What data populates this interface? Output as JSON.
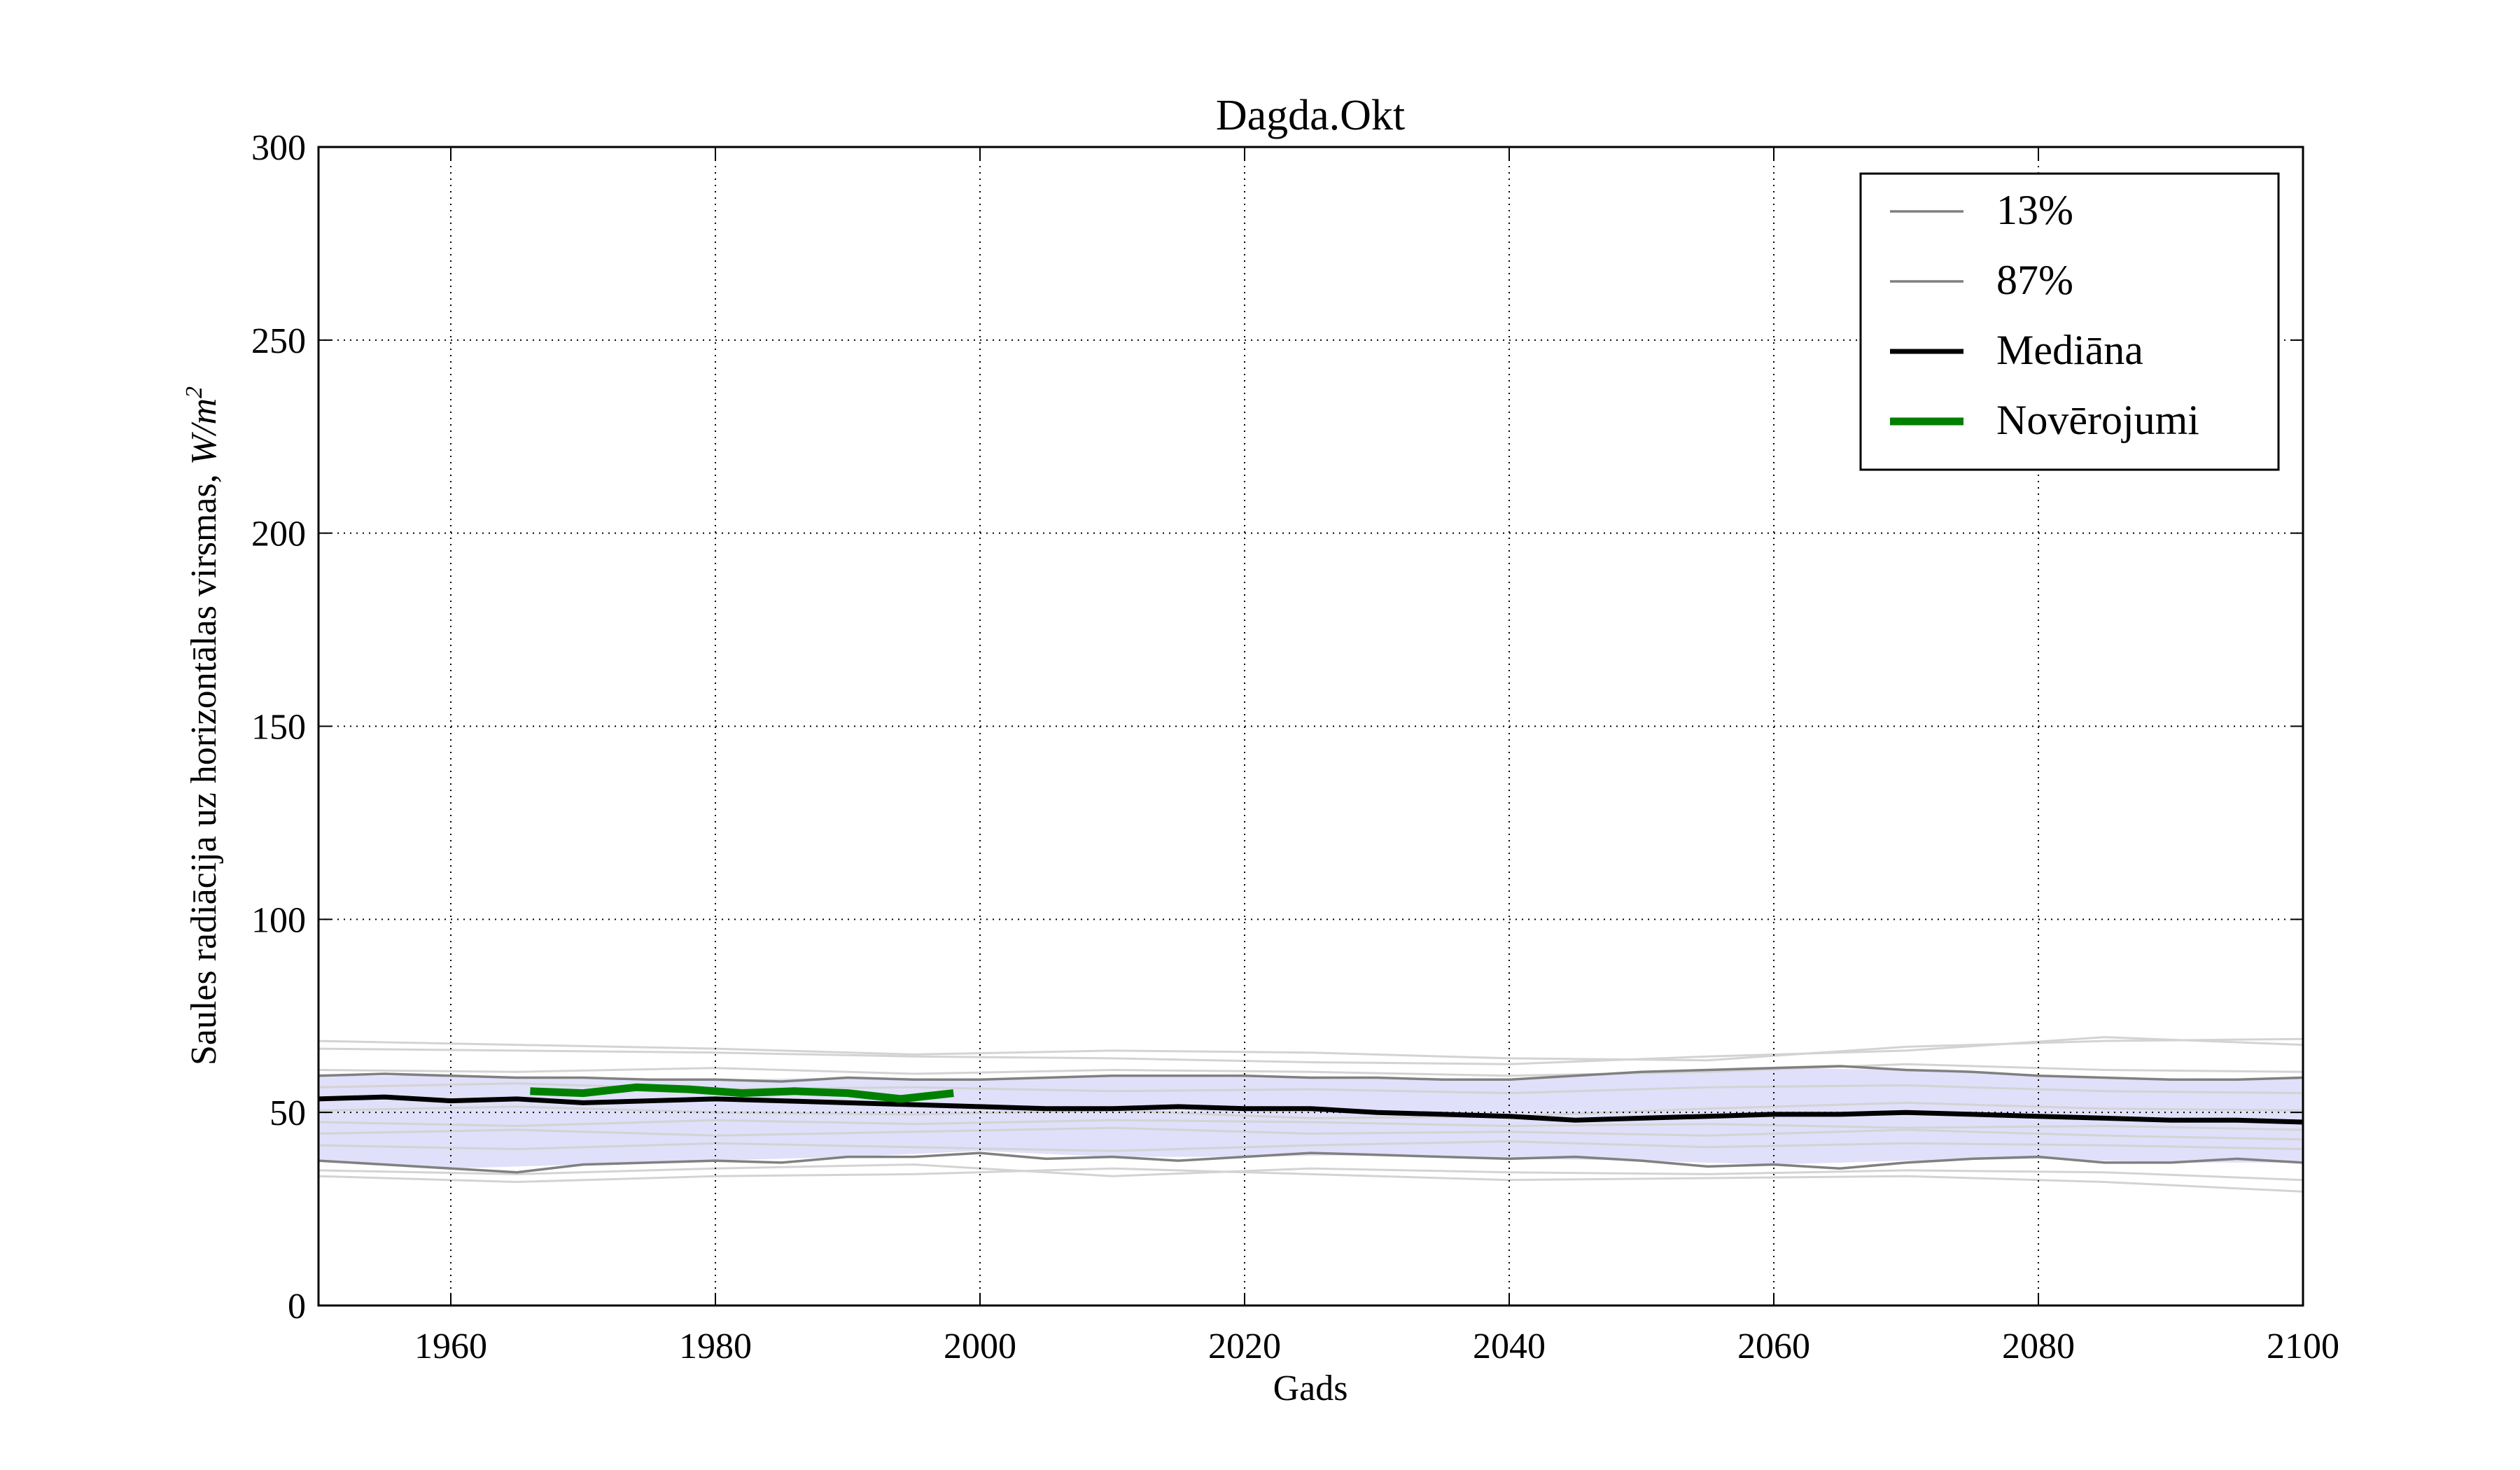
{
  "chart_data": {
    "type": "line",
    "title": "Dagda.Okt",
    "xlabel": "Gads",
    "ylabel": "Saules radiācija uz horizontālas virsmas, ",
    "ylabel_unit": "W/m",
    "ylabel_unit_exp": "2",
    "xlim": [
      1950,
      2100
    ],
    "ylim": [
      0,
      300
    ],
    "xticks": [
      1960,
      1980,
      2000,
      2020,
      2040,
      2060,
      2080,
      2100
    ],
    "yticks": [
      0,
      50,
      100,
      150,
      200,
      250,
      300
    ],
    "grid": true,
    "legend_position": "top-right",
    "legend": [
      {
        "label": "13%",
        "color": "#808080"
      },
      {
        "label": "87%",
        "color": "#808080"
      },
      {
        "label": "Mediāna",
        "color": "#000000"
      },
      {
        "label": "Novērojumi",
        "color": "#008000"
      }
    ],
    "band_color": "#e0e0fa",
    "ensemble_color": "#d3d3d3",
    "band": {
      "x": [
        1950,
        1960,
        1970,
        1980,
        1990,
        2000,
        2010,
        2020,
        2030,
        2040,
        2050,
        2060,
        2070,
        2080,
        2090,
        2100
      ],
      "lower": [
        37.5,
        35.5,
        36.5,
        37.5,
        38.5,
        40.0,
        38.5,
        38.5,
        39.0,
        38.0,
        37.5,
        36.5,
        37.5,
        38.0,
        37.0,
        37.0
      ],
      "upper": [
        59.5,
        59.5,
        59.0,
        58.5,
        59.0,
        58.5,
        59.5,
        59.5,
        59.0,
        58.5,
        60.5,
        61.5,
        61.0,
        59.5,
        58.5,
        59.0
      ]
    },
    "series": [
      {
        "name": "13%",
        "color": "#808080",
        "x": [
          1950,
          1955,
          1960,
          1965,
          1970,
          1975,
          1980,
          1985,
          1990,
          1995,
          2000,
          2005,
          2010,
          2015,
          2020,
          2025,
          2030,
          2035,
          2040,
          2045,
          2050,
          2055,
          2060,
          2065,
          2070,
          2075,
          2080,
          2085,
          2090,
          2095,
          2100
        ],
        "y": [
          37.5,
          36.5,
          35.5,
          34.5,
          36.5,
          37.0,
          37.5,
          37.0,
          38.5,
          38.5,
          39.5,
          38.0,
          38.5,
          37.5,
          38.5,
          39.5,
          39.0,
          38.5,
          38.0,
          38.5,
          37.5,
          36.0,
          36.5,
          35.5,
          37.0,
          38.0,
          38.5,
          37.0,
          37.0,
          38.0,
          37.0
        ]
      },
      {
        "name": "87%",
        "color": "#808080",
        "x": [
          1950,
          1955,
          1960,
          1965,
          1970,
          1975,
          1980,
          1985,
          1990,
          1995,
          2000,
          2005,
          2010,
          2015,
          2020,
          2025,
          2030,
          2035,
          2040,
          2045,
          2050,
          2055,
          2060,
          2065,
          2070,
          2075,
          2080,
          2085,
          2090,
          2095,
          2100
        ],
        "y": [
          59.5,
          60.0,
          59.5,
          59.0,
          59.0,
          58.5,
          58.5,
          58.0,
          59.0,
          58.5,
          58.5,
          59.0,
          59.5,
          59.5,
          59.5,
          59.0,
          59.0,
          58.5,
          58.5,
          59.5,
          60.5,
          61.0,
          61.5,
          62.0,
          61.0,
          60.5,
          59.5,
          59.0,
          58.5,
          58.5,
          59.0
        ]
      },
      {
        "name": "Mediāna",
        "color": "#000000",
        "x": [
          1950,
          1955,
          1960,
          1965,
          1970,
          1975,
          1980,
          1985,
          1990,
          1995,
          2000,
          2005,
          2010,
          2015,
          2020,
          2025,
          2030,
          2035,
          2040,
          2045,
          2050,
          2055,
          2060,
          2065,
          2070,
          2075,
          2080,
          2085,
          2090,
          2095,
          2100
        ],
        "y": [
          53.5,
          54.0,
          53.0,
          53.5,
          52.5,
          53.0,
          53.5,
          53.0,
          52.5,
          52.0,
          51.5,
          51.0,
          51.0,
          51.5,
          51.0,
          51.0,
          50.0,
          49.5,
          49.0,
          48.0,
          48.5,
          49.0,
          49.5,
          49.5,
          50.0,
          49.5,
          49.0,
          48.5,
          48.0,
          48.0,
          47.5
        ]
      },
      {
        "name": "Novērojumi",
        "color": "#008000",
        "x": [
          1966,
          1970,
          1974,
          1978,
          1982,
          1986,
          1990,
          1994,
          1998
        ],
        "y": [
          55.5,
          55.0,
          56.5,
          56.0,
          55.0,
          55.5,
          55.0,
          53.5,
          55.0
        ]
      }
    ],
    "ensemble": [
      {
        "x": [
          1950,
          1965,
          1980,
          1995,
          2010,
          2025,
          2040,
          2055,
          2070,
          2085,
          2100
        ],
        "y": [
          68.5,
          67.5,
          66.5,
          65.0,
          66.0,
          65.5,
          64.0,
          63.5,
          67.0,
          68.5,
          69.0
        ]
      },
      {
        "x": [
          1950,
          1965,
          1980,
          1995,
          2010,
          2025,
          2040,
          2055,
          2070,
          2085,
          2100
        ],
        "y": [
          66.5,
          66.0,
          65.5,
          64.5,
          64.0,
          63.0,
          62.5,
          64.5,
          66.0,
          69.5,
          67.5
        ]
      },
      {
        "x": [
          1950,
          1965,
          1980,
          1995,
          2010,
          2025,
          2040,
          2055,
          2070,
          2085,
          2100
        ],
        "y": [
          33.5,
          32.0,
          33.5,
          34.0,
          35.5,
          34.0,
          32.5,
          33.0,
          33.5,
          32.0,
          29.5
        ]
      },
      {
        "x": [
          1950,
          1965,
          1980,
          1995,
          2010,
          2025,
          2040,
          2055,
          2070,
          2085,
          2100
        ],
        "y": [
          35.0,
          34.0,
          35.5,
          36.5,
          33.5,
          35.5,
          34.5,
          34.0,
          35.0,
          34.5,
          32.5
        ]
      },
      {
        "x": [
          1950,
          1965,
          1980,
          1995,
          2010,
          2025,
          2040,
          2055,
          2070,
          2085,
          2100
        ],
        "y": [
          44.5,
          45.5,
          44.0,
          45.0,
          46.0,
          44.5,
          45.0,
          44.0,
          45.5,
          44.0,
          43.0
        ]
      },
      {
        "x": [
          1950,
          1965,
          1980,
          1995,
          2010,
          2025,
          2040,
          2055,
          2070,
          2085,
          2100
        ],
        "y": [
          47.5,
          46.5,
          48.0,
          47.0,
          48.0,
          47.5,
          46.5,
          47.0,
          46.0,
          46.5,
          45.5
        ]
      },
      {
        "x": [
          1950,
          1965,
          1980,
          1995,
          2010,
          2025,
          2040,
          2055,
          2070,
          2085,
          2100
        ],
        "y": [
          56.5,
          57.5,
          56.0,
          56.5,
          55.5,
          56.0,
          55.0,
          56.5,
          57.0,
          55.5,
          55.0
        ]
      },
      {
        "x": [
          1950,
          1965,
          1980,
          1995,
          2010,
          2025,
          2040,
          2055,
          2070,
          2085,
          2100
        ],
        "y": [
          50.5,
          51.5,
          50.0,
          49.5,
          50.5,
          48.5,
          49.0,
          51.0,
          52.5,
          51.0,
          50.5
        ]
      },
      {
        "x": [
          1950,
          1965,
          1980,
          1995,
          2010,
          2025,
          2040,
          2055,
          2070,
          2085,
          2100
        ],
        "y": [
          41.5,
          40.5,
          42.0,
          41.0,
          40.0,
          41.5,
          42.5,
          41.0,
          42.0,
          41.5,
          40.5
        ]
      },
      {
        "x": [
          1950,
          1965,
          1980,
          1995,
          2010,
          2025,
          2040,
          2055,
          2070,
          2085,
          2100
        ],
        "y": [
          61.0,
          60.5,
          61.5,
          60.0,
          61.0,
          60.5,
          59.5,
          60.5,
          62.5,
          61.0,
          60.5
        ]
      }
    ]
  }
}
